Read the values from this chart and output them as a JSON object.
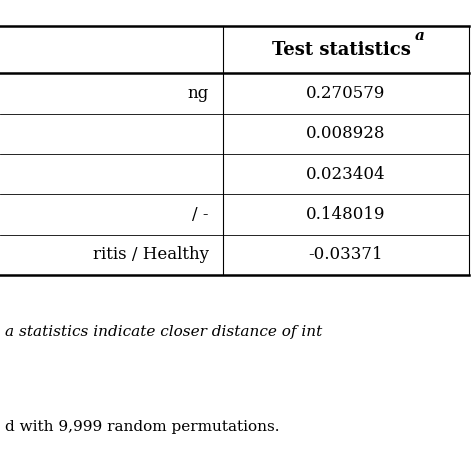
{
  "header": "Test statistics",
  "header_superscript": "a",
  "rows": [
    {
      "label": "ng",
      "value": "0.270579"
    },
    {
      "label": "",
      "value": "0.008928"
    },
    {
      "label": "",
      "value": "0.023404"
    },
    {
      "label": "/ -",
      "value": "0.148019"
    },
    {
      "label": "ritis / Healthy",
      "value": "-0.03371"
    }
  ],
  "footnote1": "a statistics indicate closer distance of int",
  "footnote2": "d with 9,999 random permutations.",
  "bg_color": "#ffffff",
  "text_color": "#000000",
  "line_color": "#000000",
  "font_size_header": 13,
  "font_size_body": 12,
  "font_size_footnote": 11
}
